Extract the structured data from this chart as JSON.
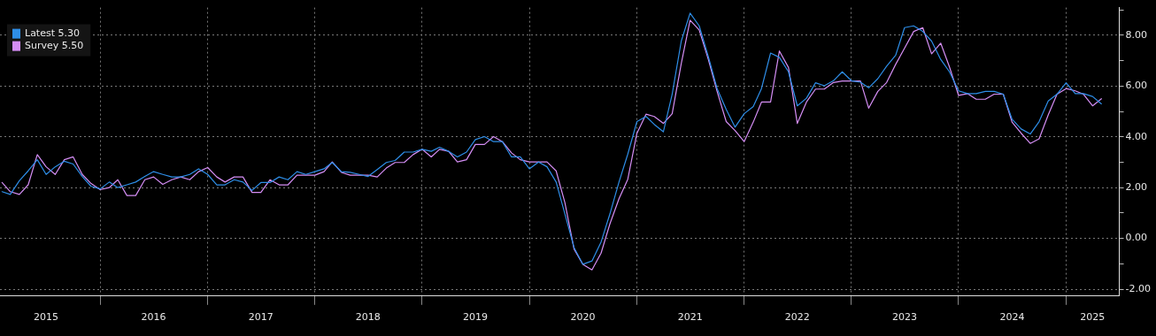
{
  "chart_data": {
    "type": "line",
    "x": [
      "2015-02",
      "2015-03",
      "2015-04",
      "2015-05",
      "2015-06",
      "2015-07",
      "2015-08",
      "2015-09",
      "2015-10",
      "2015-11",
      "2015-12",
      "2016-01",
      "2016-02",
      "2016-03",
      "2016-04",
      "2016-05",
      "2016-06",
      "2016-07",
      "2016-08",
      "2016-09",
      "2016-10",
      "2016-11",
      "2016-12",
      "2017-01",
      "2017-02",
      "2017-03",
      "2017-04",
      "2017-05",
      "2017-06",
      "2017-07",
      "2017-08",
      "2017-09",
      "2017-10",
      "2017-11",
      "2017-12",
      "2018-01",
      "2018-02",
      "2018-03",
      "2018-04",
      "2018-05",
      "2018-06",
      "2018-07",
      "2018-08",
      "2018-09",
      "2018-10",
      "2018-11",
      "2018-12",
      "2019-01",
      "2019-02",
      "2019-03",
      "2019-04",
      "2019-05",
      "2019-06",
      "2019-07",
      "2019-08",
      "2019-09",
      "2019-10",
      "2019-11",
      "2019-12",
      "2020-01",
      "2020-02",
      "2020-03",
      "2020-04",
      "2020-05",
      "2020-06",
      "2020-07",
      "2020-08",
      "2020-09",
      "2020-10",
      "2020-11",
      "2020-12",
      "2021-01",
      "2021-02",
      "2021-03",
      "2021-04",
      "2021-05",
      "2021-06",
      "2021-07",
      "2021-08",
      "2021-09",
      "2021-10",
      "2021-11",
      "2021-12",
      "2022-01",
      "2022-02",
      "2022-03",
      "2022-04",
      "2022-05",
      "2022-06",
      "2022-07",
      "2022-08",
      "2022-09",
      "2022-10",
      "2022-11",
      "2022-12",
      "2023-01",
      "2023-02",
      "2023-03",
      "2023-04",
      "2023-05",
      "2023-06",
      "2023-07",
      "2023-08",
      "2023-09",
      "2023-10",
      "2023-11",
      "2023-12",
      "2024-01",
      "2024-02",
      "2024-03",
      "2024-04",
      "2024-05",
      "2024-06",
      "2024-07",
      "2024-08",
      "2024-09",
      "2024-10",
      "2024-11",
      "2024-12",
      "2025-01",
      "2025-02",
      "2025-03",
      "2025-04",
      "2025-05"
    ],
    "series": [
      {
        "name": "Latest 5.30",
        "color": "#2e8ee8",
        "values": [
          1.84,
          1.73,
          2.27,
          2.66,
          3.1,
          2.52,
          2.82,
          3.04,
          2.93,
          2.44,
          2.05,
          1.95,
          2.22,
          2.0,
          2.11,
          2.22,
          2.44,
          2.63,
          2.52,
          2.42,
          2.42,
          2.52,
          2.74,
          2.52,
          2.11,
          2.11,
          2.31,
          2.22,
          1.89,
          2.2,
          2.2,
          2.42,
          2.31,
          2.63,
          2.52,
          2.63,
          2.74,
          2.99,
          2.63,
          2.6,
          2.52,
          2.44,
          2.71,
          2.99,
          3.07,
          3.4,
          3.4,
          3.51,
          3.43,
          3.59,
          3.43,
          3.21,
          3.4,
          3.89,
          4.01,
          3.81,
          3.81,
          3.21,
          3.21,
          2.74,
          3.01,
          2.82,
          2.22,
          0.96,
          -0.36,
          -1.02,
          -0.89,
          -0.14,
          0.96,
          2.22,
          3.32,
          4.6,
          4.8,
          4.49,
          4.2,
          5.68,
          7.77,
          8.87,
          8.37,
          7.16,
          5.9,
          5.08,
          4.38,
          4.91,
          5.19,
          5.9,
          7.3,
          7.13,
          6.56,
          5.22,
          5.52,
          6.13,
          6.01,
          6.21,
          6.56,
          6.21,
          6.15,
          5.93,
          6.29,
          6.78,
          7.22,
          8.3,
          8.37,
          8.15,
          7.77,
          7.05,
          6.56,
          5.81,
          5.7,
          5.7,
          5.79,
          5.79,
          5.68,
          4.69,
          4.31,
          4.11,
          4.6,
          5.41,
          5.68,
          6.13,
          5.7,
          5.7,
          5.59,
          5.3
        ]
      },
      {
        "name": "Survey 5.50",
        "color": "#d58ef5",
        "values": [
          2.2,
          1.84,
          1.73,
          2.11,
          3.3,
          2.82,
          2.52,
          3.1,
          3.21,
          2.52,
          2.16,
          1.92,
          2.0,
          2.31,
          1.69,
          1.69,
          2.31,
          2.42,
          2.13,
          2.31,
          2.42,
          2.31,
          2.63,
          2.79,
          2.42,
          2.22,
          2.42,
          2.42,
          1.81,
          1.81,
          2.31,
          2.11,
          2.11,
          2.49,
          2.49,
          2.49,
          2.63,
          3.01,
          2.6,
          2.49,
          2.49,
          2.49,
          2.42,
          2.77,
          2.99,
          2.99,
          3.3,
          3.51,
          3.21,
          3.51,
          3.43,
          3.01,
          3.1,
          3.7,
          3.7,
          4.01,
          3.81,
          3.37,
          3.1,
          3.01,
          3.01,
          3.01,
          2.66,
          1.4,
          -0.42,
          -1.02,
          -1.24,
          -0.58,
          0.57,
          1.56,
          2.33,
          4.14,
          4.89,
          4.8,
          4.53,
          4.91,
          6.89,
          8.59,
          8.21,
          7.05,
          5.79,
          4.6,
          4.25,
          3.81,
          4.58,
          5.37,
          5.37,
          7.38,
          6.73,
          4.53,
          5.37,
          5.88,
          5.88,
          6.14,
          6.2,
          6.2,
          6.2,
          5.13,
          5.79,
          6.14,
          6.86,
          7.49,
          8.15,
          8.3,
          7.27,
          7.69,
          6.75,
          5.63,
          5.7,
          5.48,
          5.48,
          5.68,
          5.68,
          4.58,
          4.14,
          3.74,
          3.92,
          4.86,
          5.68,
          5.9,
          5.81,
          5.68,
          5.22,
          5.5
        ]
      }
    ],
    "xlim": [
      "2015-01-25",
      "2025-07-01"
    ],
    "xticks": [
      {
        "value": "2015-07-01",
        "label": "2015"
      },
      {
        "value": "2016-01-01",
        "label": null
      },
      {
        "value": "2016-07-01",
        "label": "2016"
      },
      {
        "value": "2017-01-01",
        "label": null
      },
      {
        "value": "2017-07-01",
        "label": "2017"
      },
      {
        "value": "2018-01-01",
        "label": null
      },
      {
        "value": "2018-07-01",
        "label": "2018"
      },
      {
        "value": "2019-01-01",
        "label": null
      },
      {
        "value": "2019-07-01",
        "label": "2019"
      },
      {
        "value": "2020-01-01",
        "label": null
      },
      {
        "value": "2020-07-01",
        "label": "2020"
      },
      {
        "value": "2021-01-01",
        "label": null
      },
      {
        "value": "2021-07-01",
        "label": "2021"
      },
      {
        "value": "2022-01-01",
        "label": null
      },
      {
        "value": "2022-07-01",
        "label": "2022"
      },
      {
        "value": "2023-01-01",
        "label": null
      },
      {
        "value": "2023-07-01",
        "label": "2023"
      },
      {
        "value": "2024-01-01",
        "label": null
      },
      {
        "value": "2024-07-01",
        "label": "2024"
      },
      {
        "value": "2025-01-01",
        "label": null
      },
      {
        "value": "2025-04-01",
        "label": "2025"
      }
    ],
    "ylim": [
      -2.27,
      9.09
    ],
    "yticks": [
      {
        "value": -2,
        "label": "-2.00"
      },
      {
        "value": -1,
        "label": null
      },
      {
        "value": 0,
        "label": "0.00"
      },
      {
        "value": 1,
        "label": null
      },
      {
        "value": 2,
        "label": "2.00"
      },
      {
        "value": 3,
        "label": null
      },
      {
        "value": 4,
        "label": "4.00"
      },
      {
        "value": 5,
        "label": null
      },
      {
        "value": 6,
        "label": "6.00"
      },
      {
        "value": 7,
        "label": null
      },
      {
        "value": 8,
        "label": "8.00"
      },
      {
        "value": 9,
        "label": null
      }
    ],
    "grid": true,
    "legend": "top left",
    "marker": "none",
    "line_style": "solid"
  }
}
